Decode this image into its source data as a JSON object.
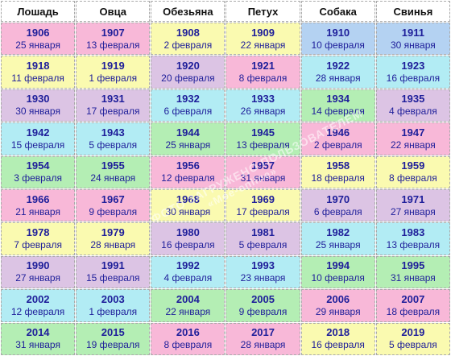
{
  "header": [
    "Лошадь",
    "Овца",
    "Обезьяна",
    "Петух",
    "Собака",
    "Свинья"
  ],
  "rows": [
    {
      "cells": [
        {
          "year": "1906",
          "date": "25 января",
          "color": "pink"
        },
        {
          "year": "1907",
          "date": "13 февраля",
          "color": "pink"
        },
        {
          "year": "1908",
          "date": "2 февраля",
          "color": "yellow"
        },
        {
          "year": "1909",
          "date": "22 января",
          "color": "yellow"
        },
        {
          "year": "1910",
          "date": "10 февраля",
          "color": "blue"
        },
        {
          "year": "1911",
          "date": "30 января",
          "color": "blue"
        }
      ]
    },
    {
      "cells": [
        {
          "year": "1918",
          "date": "11 февраля",
          "color": "yellow"
        },
        {
          "year": "1919",
          "date": "1 февраля",
          "color": "yellow"
        },
        {
          "year": "1920",
          "date": "20 февраля",
          "color": "purple"
        },
        {
          "year": "1921",
          "date": "8 февраля",
          "color": "pink"
        },
        {
          "year": "1922",
          "date": "28 января",
          "color": "cyan"
        },
        {
          "year": "1923",
          "date": "16 февраля",
          "color": "cyan"
        }
      ]
    },
    {
      "cells": [
        {
          "year": "1930",
          "date": "30 января",
          "color": "purple"
        },
        {
          "year": "1931",
          "date": "17 февраля",
          "color": "purple"
        },
        {
          "year": "1932",
          "date": "6 февраля",
          "color": "cyan"
        },
        {
          "year": "1933",
          "date": "26 января",
          "color": "cyan"
        },
        {
          "year": "1934",
          "date": "14 февраля",
          "color": "green"
        },
        {
          "year": "1935",
          "date": "4 февраля",
          "color": "purple"
        }
      ]
    },
    {
      "cells": [
        {
          "year": "1942",
          "date": "15 февраля",
          "color": "cyan"
        },
        {
          "year": "1943",
          "date": "5 февраля",
          "color": "cyan"
        },
        {
          "year": "1944",
          "date": "25 января",
          "color": "green"
        },
        {
          "year": "1945",
          "date": "13 февраля",
          "color": "green"
        },
        {
          "year": "1946",
          "date": "2 февраля",
          "color": "pink"
        },
        {
          "year": "1947",
          "date": "22 января",
          "color": "pink"
        }
      ]
    },
    {
      "cells": [
        {
          "year": "1954",
          "date": "3 февраля",
          "color": "green"
        },
        {
          "year": "1955",
          "date": "24 января",
          "color": "green"
        },
        {
          "year": "1956",
          "date": "12 февраля",
          "color": "pink"
        },
        {
          "year": "1957",
          "date": "31 января",
          "color": "pink"
        },
        {
          "year": "1958",
          "date": "18 февраля",
          "color": "yellow"
        },
        {
          "year": "1959",
          "date": "8 февраля",
          "color": "yellow"
        }
      ]
    },
    {
      "cells": [
        {
          "year": "1966",
          "date": "21 января",
          "color": "pink"
        },
        {
          "year": "1967",
          "date": "9 февраля",
          "color": "pink"
        },
        {
          "year": "1968",
          "date": "30 января",
          "color": "yellow"
        },
        {
          "year": "1969",
          "date": "17 февраля",
          "color": "yellow"
        },
        {
          "year": "1970",
          "date": "6 февраля",
          "color": "purple"
        },
        {
          "year": "1971",
          "date": "27 января",
          "color": "purple"
        }
      ]
    },
    {
      "cells": [
        {
          "year": "1978",
          "date": "7 февраля",
          "color": "yellow"
        },
        {
          "year": "1979",
          "date": "28 января",
          "color": "yellow"
        },
        {
          "year": "1980",
          "date": "16 февраля",
          "color": "purple"
        },
        {
          "year": "1981",
          "date": "5 февраля",
          "color": "purple"
        },
        {
          "year": "1982",
          "date": "25 января",
          "color": "cyan"
        },
        {
          "year": "1983",
          "date": "13 февраля",
          "color": "cyan"
        }
      ]
    },
    {
      "cells": [
        {
          "year": "1990",
          "date": "27 января",
          "color": "purple"
        },
        {
          "year": "1991",
          "date": "15 февраля",
          "color": "purple"
        },
        {
          "year": "1992",
          "date": "4 февраля",
          "color": "cyan"
        },
        {
          "year": "1993",
          "date": "23 января",
          "color": "cyan"
        },
        {
          "year": "1994",
          "date": "10 февраля",
          "color": "green"
        },
        {
          "year": "1995",
          "date": "31 января",
          "color": "green"
        }
      ]
    },
    {
      "cells": [
        {
          "year": "2002",
          "date": "12 февраля",
          "color": "cyan"
        },
        {
          "year": "2003",
          "date": "1 февраля",
          "color": "cyan"
        },
        {
          "year": "2004",
          "date": "22 января",
          "color": "green"
        },
        {
          "year": "2005",
          "date": "9 февраля",
          "color": "green"
        },
        {
          "year": "2006",
          "date": "29 января",
          "color": "pink"
        },
        {
          "year": "2007",
          "date": "18 февраля",
          "color": "pink"
        }
      ]
    },
    {
      "cells": [
        {
          "year": "2014",
          "date": "31 января",
          "color": "green"
        },
        {
          "year": "2015",
          "date": "19 февраля",
          "color": "green"
        },
        {
          "year": "2016",
          "date": "8 февраля",
          "color": "pink"
        },
        {
          "year": "2017",
          "date": "28 января",
          "color": "pink"
        },
        {
          "year": "2018",
          "date": "16 февраля",
          "color": "yellow"
        },
        {
          "year": "2019",
          "date": "5 февраля",
          "color": "yellow"
        }
      ]
    }
  ],
  "colors": {
    "pink": "#f8b8d8",
    "purple": "#dcc4e4",
    "cyan": "#b2ecf4",
    "green": "#b4eeb4",
    "yellow": "#fafab0",
    "blue": "#b4d2f2",
    "text": "#1e1e9a"
  },
  "watermark": {
    "line1": "ФОТО ЗАГРУЖЕНО ПОЛЬЗОВАТЕЛЕМ",
    "line2": "«Мое-online»"
  }
}
